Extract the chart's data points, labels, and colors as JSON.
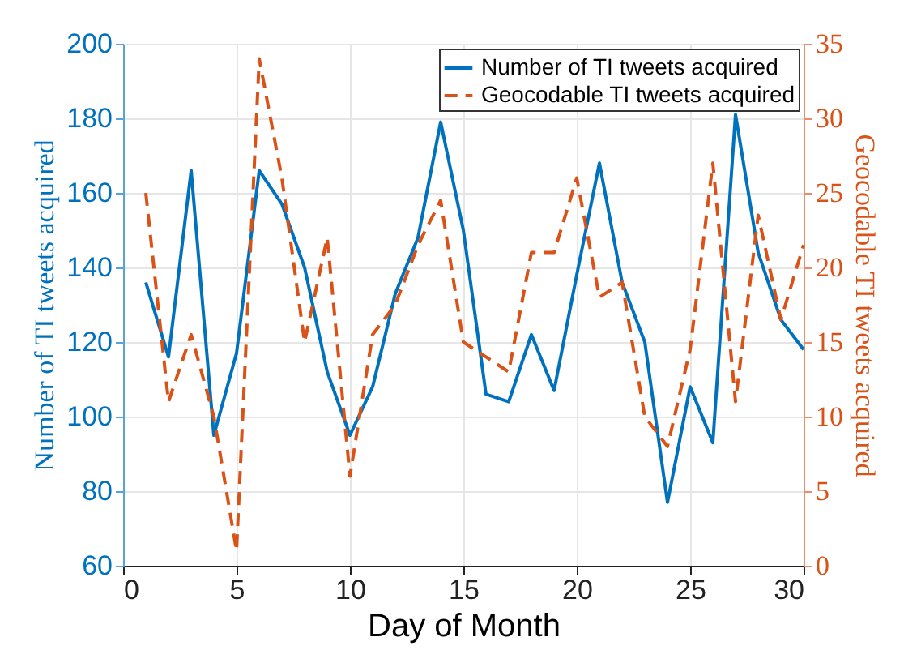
{
  "chart_data": {
    "type": "line",
    "xlabel": "Day of Month",
    "ylabel": "Number of TI tweets acquired",
    "y2label": "Geocodable TI tweets acquired",
    "x": [
      1,
      2,
      3,
      4,
      5,
      6,
      7,
      8,
      9,
      10,
      11,
      12,
      13,
      14,
      15,
      16,
      17,
      18,
      19,
      20,
      21,
      22,
      23,
      24,
      25,
      26,
      27,
      28,
      29,
      30
    ],
    "series": [
      {
        "name": "Number of TI tweets acquired",
        "color": "#0072bd",
        "line_style": "solid",
        "values": [
          136,
          116,
          166,
          95,
          117,
          166,
          157,
          140,
          112,
          95,
          108,
          133,
          148,
          179,
          150,
          106,
          104,
          122,
          107,
          138,
          168,
          136,
          120,
          77,
          108,
          93,
          181,
          144,
          126,
          118
        ]
      },
      {
        "name": "Geocodable TI tweets acquired",
        "color": "#d95319",
        "line_style": "dashed",
        "axis": "y2",
        "values": [
          25,
          11,
          15.5,
          10,
          1,
          34,
          26,
          15,
          22,
          6,
          15.5,
          17.5,
          21.5,
          24.5,
          15,
          14,
          13,
          21,
          21,
          26,
          18,
          19,
          10,
          8,
          14.5,
          27,
          11,
          23.5,
          16.5,
          21.5
        ]
      }
    ],
    "xlim": [
      0,
      30
    ],
    "xticks": [
      0,
      5,
      10,
      15,
      20,
      25,
      30
    ],
    "ylim": [
      60,
      200
    ],
    "yticks": [
      60,
      80,
      100,
      120,
      140,
      160,
      180,
      200
    ],
    "y2lim": [
      0,
      35
    ],
    "y2ticks": [
      0,
      5,
      10,
      15,
      20,
      25,
      30,
      35
    ],
    "grid": true,
    "legend": "top right",
    "marker": "none"
  }
}
